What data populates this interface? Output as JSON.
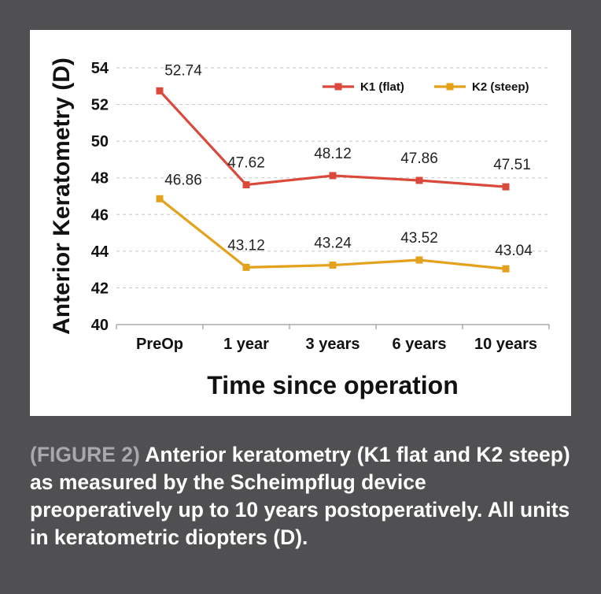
{
  "chart_data": {
    "type": "line",
    "categories": [
      "PreOp",
      "1 year",
      "3 years",
      "6 years",
      "10 years"
    ],
    "series": [
      {
        "name": "K1 (flat)",
        "color": "#d9493c",
        "values": [
          52.74,
          47.62,
          48.12,
          47.86,
          47.51
        ],
        "labels": [
          "52.74",
          "47.62",
          "48.12",
          "47.86",
          "47.51"
        ]
      },
      {
        "name": "K2 (steep)",
        "color": "#e4a11b",
        "values": [
          46.86,
          43.12,
          43.24,
          43.52,
          43.04
        ],
        "labels": [
          "46.86",
          "43.12",
          "43.24",
          "43.52",
          "43.04"
        ]
      }
    ],
    "xlabel": "Time since operation",
    "ylabel": "Anterior Keratometry (D)",
    "ylim": [
      40,
      54
    ],
    "yticks": [
      "40",
      "42",
      "44",
      "46",
      "48",
      "50",
      "52",
      "54"
    ],
    "grid": true,
    "legend_position": "top-right"
  },
  "caption": {
    "label": "(FIGURE 2)",
    "text": "Anterior keratometry (K1 flat and K2 steep) as measured by the Scheimpflug device preoperatively up to 10 years postoperatively. All units in keratometric diopters (D)."
  },
  "colors": {
    "background": "#505052",
    "panel": "#ffffff",
    "grid": "#c8c8c8",
    "caption_label": "#a9a9ad"
  }
}
